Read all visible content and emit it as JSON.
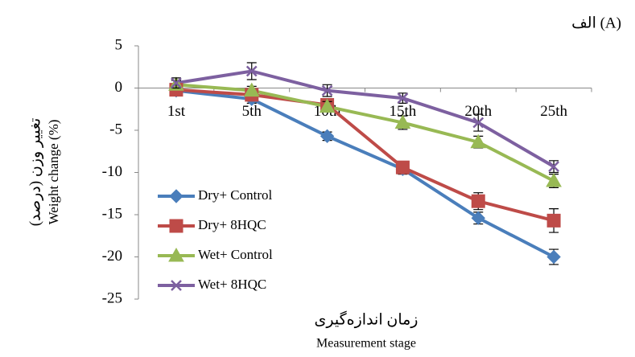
{
  "chart_data": {
    "type": "line",
    "title": "الف (A)",
    "y_label": "تغییر وزن (درصد)",
    "y_label_en": "Weight change (%)",
    "x_label": "زمان اندازه‌گیری",
    "x_label_en": "Measurement stage",
    "categories": [
      "1st",
      "5th",
      "10th",
      "15th",
      "20th",
      "25th"
    ],
    "series": [
      {
        "name": "Dry+ Control",
        "color": "#4a7ebb",
        "marker": "diamond",
        "values": [
          -0.3,
          -1.3,
          -5.7,
          -9.6,
          -15.4,
          -20.0
        ],
        "errors": [
          0.5,
          0.5,
          0.5,
          0.6,
          0.7,
          0.9
        ]
      },
      {
        "name": "Dry+ 8HQC",
        "color": "#be4b48",
        "marker": "square",
        "values": [
          -0.2,
          -0.8,
          -2.0,
          -9.4,
          -13.4,
          -15.7
        ],
        "errors": [
          0.5,
          0.5,
          0.6,
          0.6,
          1.0,
          1.4
        ]
      },
      {
        "name": "Wet+ Control",
        "color": "#98b954",
        "marker": "triangle",
        "values": [
          0.4,
          -0.3,
          -2.2,
          -4.1,
          -6.4,
          -11.0
        ],
        "errors": [
          0.5,
          0.5,
          0.6,
          0.8,
          0.7,
          0.8
        ]
      },
      {
        "name": "Wet+ 8HQC",
        "color": "#7d60a0",
        "marker": "x",
        "values": [
          0.6,
          2.0,
          -0.3,
          -1.2,
          -4.1,
          -9.3
        ],
        "errors": [
          0.6,
          1.0,
          0.7,
          0.6,
          1.0,
          0.7
        ]
      }
    ],
    "ylim": [
      -25,
      5
    ],
    "yticks": [
      5,
      0,
      -5,
      -10,
      -15,
      -20,
      -25
    ],
    "legend_position": "lower left"
  }
}
